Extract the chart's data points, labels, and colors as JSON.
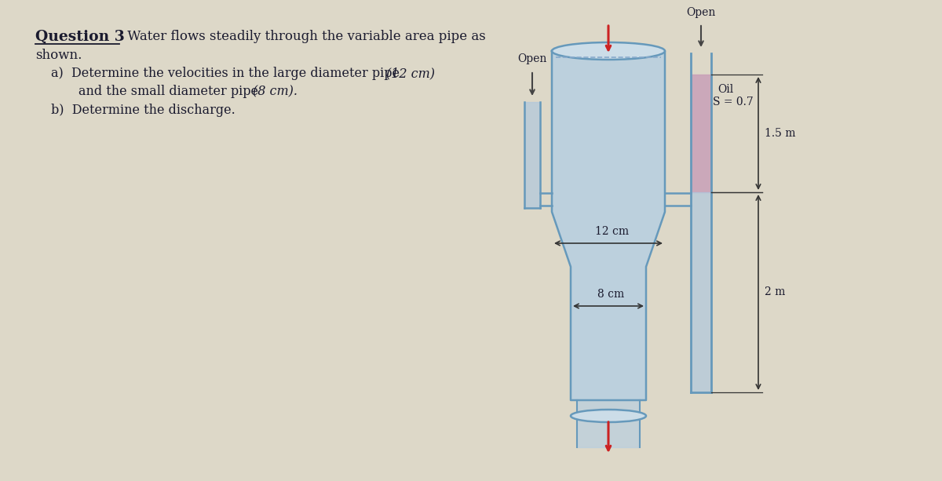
{
  "bg_color": "#ddd8c8",
  "pipe_fill": "#b8cfe0",
  "pipe_edge": "#6699bb",
  "pipe_fill_dark": "#9ab8d0",
  "oil_fill": "#c8a0b8",
  "water_fill": "#b0c8dc",
  "arrow_red": "#cc2222",
  "arrow_dark": "#444444",
  "dim_color": "#333333",
  "text_color": "#1a1a2e",
  "open_left_label": "Open",
  "open_right_label": "Open",
  "oil_label_line1": "Oil",
  "oil_label_line2": "S = 0.7",
  "dim_15": "1.5 m",
  "dim_2": "2 m",
  "dim_12cm": "12 cm",
  "dim_8cm": "8 cm"
}
